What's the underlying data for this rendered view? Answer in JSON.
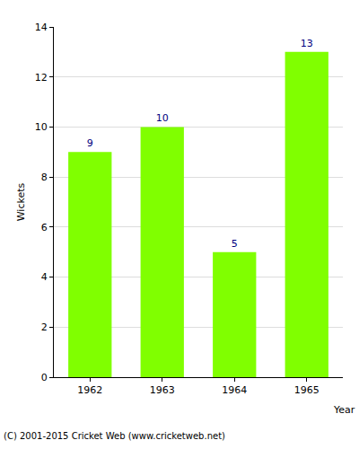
{
  "chart_data": {
    "type": "bar",
    "categories": [
      "1962",
      "1963",
      "1964",
      "1965"
    ],
    "values": [
      9,
      10,
      5,
      13
    ],
    "color": "#80ff00",
    "x_label": "Year",
    "y_label": "Wickets",
    "ylim": [
      0,
      14
    ],
    "yticks": [
      0,
      2,
      4,
      6,
      8,
      10,
      12,
      14
    ],
    "grid": true,
    "data_labels": true,
    "annotations": [
      "(C) 2001-2015 Cricket Web (www.cricketweb.net)"
    ]
  }
}
